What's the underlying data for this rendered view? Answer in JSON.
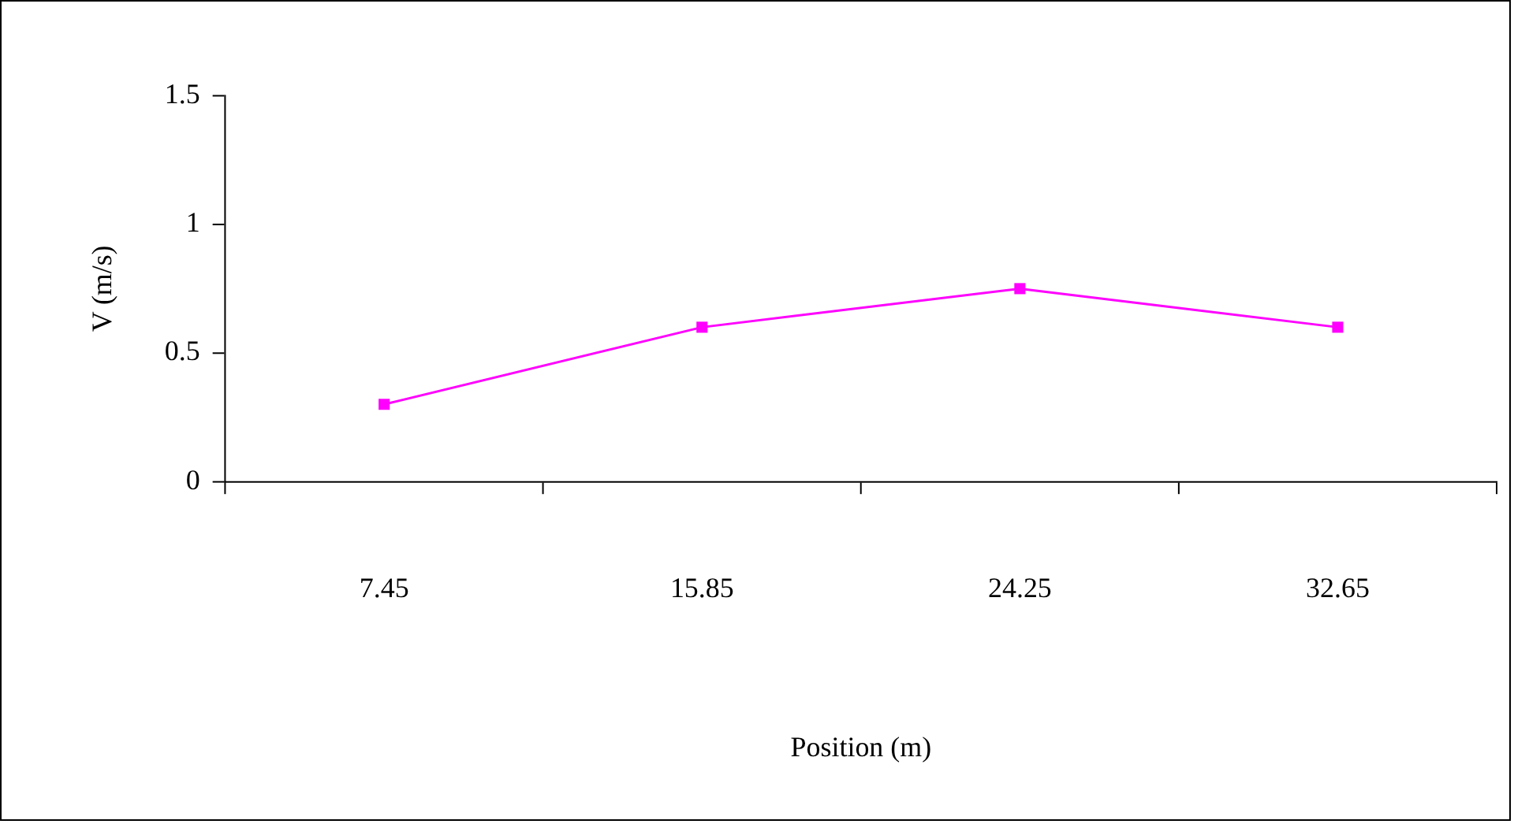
{
  "chart_data": {
    "type": "line",
    "xlabel": "Position (m)",
    "ylabel": "V (m/s)",
    "categories": [
      "7.45",
      "15.85",
      "24.25",
      "32.65"
    ],
    "series": [
      {
        "color": "#ff00ff",
        "values": [
          0.3,
          0.6,
          0.75,
          0.6
        ]
      }
    ],
    "ylim": [
      0,
      1.5
    ],
    "yticks": [
      0,
      0.5,
      1,
      1.5
    ],
    "grid": false,
    "legend": false,
    "marker": "square",
    "line_style": "solid"
  }
}
